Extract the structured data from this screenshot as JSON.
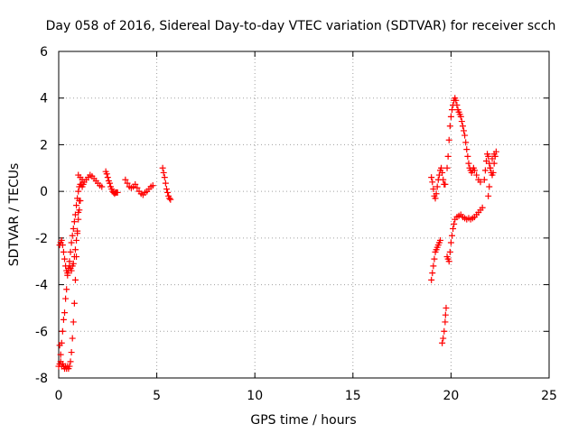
{
  "chart_data": {
    "type": "scatter",
    "title": "Day 058 of 2016, Sidereal Day-to-day VTEC variation (SDTVAR) for receiver scch",
    "xlabel": "GPS time / hours",
    "ylabel": "SDTVAR / TECUs",
    "xlim": [
      0,
      25
    ],
    "ylim": [
      -8,
      6
    ],
    "xticks": [
      0,
      5,
      10,
      15,
      20,
      25
    ],
    "yticks": [
      -8,
      -6,
      -4,
      -2,
      0,
      2,
      4,
      6
    ],
    "xtick_labels": [
      "0",
      "5",
      "10",
      "15",
      "20",
      "25"
    ],
    "ytick_labels": [
      "-8",
      "-6",
      "-4",
      "-2",
      "0",
      "2",
      "4",
      "6"
    ],
    "grid": true,
    "marker": "+",
    "color": "#ff0000",
    "series": [
      {
        "name": "SDTVAR",
        "segments": [
          [
            [
              0.0,
              -7.5
            ],
            [
              0.05,
              -6.6
            ],
            [
              0.1,
              -7.0
            ],
            [
              0.15,
              -6.5
            ],
            [
              0.2,
              -6.0
            ],
            [
              0.25,
              -5.5
            ],
            [
              0.3,
              -5.2
            ],
            [
              0.35,
              -4.6
            ],
            [
              0.4,
              -4.2
            ],
            [
              0.45,
              -3.6
            ],
            [
              0.5,
              -3.4
            ],
            [
              0.55,
              -3.0
            ],
            [
              0.6,
              -2.6
            ],
            [
              0.65,
              -2.2
            ],
            [
              0.7,
              -1.9
            ],
            [
              0.75,
              -1.6
            ],
            [
              0.8,
              -1.3
            ],
            [
              0.85,
              -1.0
            ],
            [
              0.9,
              -0.6
            ],
            [
              0.95,
              -0.3
            ],
            [
              1.0,
              0.0
            ],
            [
              1.05,
              0.2
            ],
            [
              1.1,
              0.3
            ],
            [
              1.15,
              0.3
            ],
            [
              1.2,
              0.2
            ],
            [
              1.25,
              0.3
            ]
          ],
          [
            [
              0.05,
              -2.3
            ],
            [
              0.1,
              -2.2
            ],
            [
              0.15,
              -2.1
            ],
            [
              0.2,
              -2.3
            ],
            [
              0.25,
              -2.6
            ],
            [
              0.3,
              -2.9
            ],
            [
              0.35,
              -3.2
            ],
            [
              0.4,
              -3.4
            ],
            [
              0.45,
              -3.5
            ],
            [
              0.5,
              -3.3
            ],
            [
              0.55,
              -3.2
            ],
            [
              0.6,
              -3.3
            ],
            [
              0.65,
              -3.4
            ],
            [
              0.7,
              -3.2
            ],
            [
              0.75,
              -3.1
            ],
            [
              0.8,
              -2.8
            ],
            [
              0.85,
              -2.5
            ],
            [
              0.9,
              -2.1
            ],
            [
              0.95,
              -1.7
            ],
            [
              1.0,
              -1.2
            ],
            [
              1.05,
              -0.8
            ],
            [
              1.1,
              -0.4
            ]
          ],
          [
            [
              0.05,
              -7.4
            ],
            [
              0.1,
              -7.3
            ],
            [
              0.15,
              -7.5
            ],
            [
              0.2,
              -7.4
            ],
            [
              0.25,
              -7.5
            ],
            [
              0.3,
              -7.6
            ],
            [
              0.35,
              -7.5
            ],
            [
              0.4,
              -7.6
            ],
            [
              0.45,
              -7.5
            ],
            [
              0.5,
              -7.6
            ],
            [
              0.55,
              -7.5
            ],
            [
              0.6,
              -7.3
            ],
            [
              0.65,
              -6.9
            ],
            [
              0.7,
              -6.3
            ],
            [
              0.75,
              -5.6
            ],
            [
              0.8,
              -4.8
            ],
            [
              0.85,
              -3.8
            ],
            [
              0.9,
              -2.8
            ],
            [
              0.95,
              -1.8
            ],
            [
              1.0,
              -0.9
            ],
            [
              1.05,
              -0.4
            ]
          ],
          [
            [
              1.0,
              0.7
            ],
            [
              1.1,
              0.6
            ],
            [
              1.2,
              0.5
            ],
            [
              1.3,
              0.4
            ],
            [
              1.4,
              0.5
            ],
            [
              1.5,
              0.6
            ],
            [
              1.6,
              0.7
            ],
            [
              1.7,
              0.65
            ],
            [
              1.8,
              0.55
            ],
            [
              1.9,
              0.45
            ],
            [
              2.0,
              0.35
            ],
            [
              2.1,
              0.25
            ],
            [
              2.2,
              0.2
            ]
          ],
          [
            [
              2.4,
              0.85
            ],
            [
              2.45,
              0.75
            ],
            [
              2.5,
              0.6
            ],
            [
              2.55,
              0.45
            ],
            [
              2.6,
              0.35
            ],
            [
              2.65,
              0.2
            ],
            [
              2.7,
              0.1
            ],
            [
              2.75,
              0.0
            ],
            [
              2.8,
              -0.05
            ],
            [
              2.85,
              -0.1
            ],
            [
              2.9,
              -0.05
            ],
            [
              2.95,
              -0.05
            ],
            [
              3.0,
              -0.05
            ]
          ],
          [
            [
              3.4,
              0.5
            ],
            [
              3.5,
              0.35
            ],
            [
              3.6,
              0.2
            ],
            [
              3.7,
              0.15
            ],
            [
              3.8,
              0.2
            ],
            [
              3.9,
              0.3
            ],
            [
              4.0,
              0.15
            ],
            [
              4.1,
              0.0
            ],
            [
              4.2,
              -0.1
            ],
            [
              4.3,
              -0.15
            ],
            [
              4.4,
              -0.05
            ],
            [
              4.5,
              0.0
            ],
            [
              4.6,
              0.1
            ],
            [
              4.7,
              0.2
            ],
            [
              4.8,
              0.25
            ]
          ],
          [
            [
              5.3,
              1.0
            ],
            [
              5.35,
              0.8
            ],
            [
              5.4,
              0.6
            ],
            [
              5.45,
              0.35
            ],
            [
              5.5,
              0.1
            ],
            [
              5.55,
              -0.05
            ],
            [
              5.6,
              -0.2
            ],
            [
              5.65,
              -0.3
            ],
            [
              5.7,
              -0.35
            ]
          ],
          [
            [
              19.0,
              0.6
            ],
            [
              19.05,
              0.4
            ],
            [
              19.1,
              0.1
            ],
            [
              19.15,
              -0.2
            ],
            [
              19.2,
              -0.3
            ],
            [
              19.25,
              -0.1
            ],
            [
              19.3,
              0.2
            ],
            [
              19.35,
              0.5
            ],
            [
              19.4,
              0.7
            ],
            [
              19.45,
              0.9
            ],
            [
              19.5,
              1.0
            ],
            [
              19.55,
              0.8
            ],
            [
              19.6,
              0.5
            ],
            [
              19.65,
              0.3
            ],
            [
              19.7,
              0.3
            ]
          ],
          [
            [
              19.0,
              -3.8
            ],
            [
              19.05,
              -3.5
            ],
            [
              19.1,
              -3.2
            ],
            [
              19.15,
              -2.9
            ],
            [
              19.2,
              -2.6
            ],
            [
              19.25,
              -2.5
            ],
            [
              19.3,
              -2.4
            ],
            [
              19.35,
              -2.3
            ],
            [
              19.4,
              -2.2
            ],
            [
              19.45,
              -2.1
            ]
          ],
          [
            [
              19.55,
              -6.5
            ],
            [
              19.6,
              -6.3
            ],
            [
              19.65,
              -6.0
            ],
            [
              19.7,
              -5.6
            ],
            [
              19.72,
              -5.3
            ],
            [
              19.75,
              -5.0
            ]
          ],
          [
            [
              19.8,
              -2.8
            ],
            [
              19.85,
              -2.9
            ],
            [
              19.9,
              -3.0
            ],
            [
              19.95,
              -2.6
            ],
            [
              20.0,
              -2.2
            ],
            [
              20.05,
              -1.9
            ],
            [
              20.1,
              -1.6
            ],
            [
              20.15,
              -1.4
            ],
            [
              20.2,
              -1.2
            ],
            [
              20.3,
              -1.1
            ],
            [
              20.4,
              -1.05
            ],
            [
              20.5,
              -1.0
            ],
            [
              20.6,
              -1.1
            ],
            [
              20.7,
              -1.15
            ],
            [
              20.8,
              -1.2
            ],
            [
              20.9,
              -1.15
            ],
            [
              21.0,
              -1.2
            ],
            [
              21.1,
              -1.15
            ],
            [
              21.2,
              -1.1
            ],
            [
              21.3,
              -1.0
            ],
            [
              21.4,
              -0.9
            ],
            [
              21.5,
              -0.8
            ],
            [
              21.6,
              -0.7
            ]
          ],
          [
            [
              19.8,
              1.0
            ],
            [
              19.85,
              1.5
            ],
            [
              19.9,
              2.2
            ],
            [
              19.95,
              2.8
            ],
            [
              20.0,
              3.2
            ],
            [
              20.05,
              3.5
            ],
            [
              20.1,
              3.7
            ],
            [
              20.15,
              3.9
            ],
            [
              20.2,
              4.0
            ],
            [
              20.25,
              3.9
            ],
            [
              20.3,
              3.7
            ],
            [
              20.35,
              3.5
            ],
            [
              20.4,
              3.4
            ],
            [
              20.45,
              3.3
            ],
            [
              20.5,
              3.2
            ],
            [
              20.55,
              3.0
            ],
            [
              20.6,
              2.8
            ],
            [
              20.65,
              2.6
            ],
            [
              20.7,
              2.4
            ],
            [
              20.75,
              2.1
            ],
            [
              20.8,
              1.8
            ],
            [
              20.85,
              1.5
            ],
            [
              20.9,
              1.2
            ],
            [
              20.95,
              1.0
            ],
            [
              21.0,
              0.9
            ],
            [
              21.05,
              0.8
            ],
            [
              21.1,
              0.9
            ],
            [
              21.15,
              1.0
            ],
            [
              21.2,
              0.9
            ],
            [
              21.3,
              0.7
            ],
            [
              21.4,
              0.5
            ],
            [
              21.5,
              0.4
            ]
          ],
          [
            [
              21.7,
              0.5
            ],
            [
              21.75,
              0.9
            ],
            [
              21.8,
              1.3
            ],
            [
              21.85,
              1.6
            ],
            [
              21.9,
              1.5
            ],
            [
              21.95,
              1.2
            ],
            [
              22.0,
              1.0
            ],
            [
              22.05,
              0.8
            ],
            [
              22.1,
              0.7
            ],
            [
              22.15,
              0.8
            ],
            [
              22.2,
              1.2
            ],
            [
              22.25,
              1.5
            ],
            [
              22.3,
              1.7
            ],
            [
              22.2,
              1.6
            ],
            [
              22.1,
              1.4
            ],
            [
              22.0,
              1.0
            ],
            [
              21.95,
              0.2
            ],
            [
              21.9,
              -0.2
            ]
          ]
        ]
      }
    ]
  }
}
